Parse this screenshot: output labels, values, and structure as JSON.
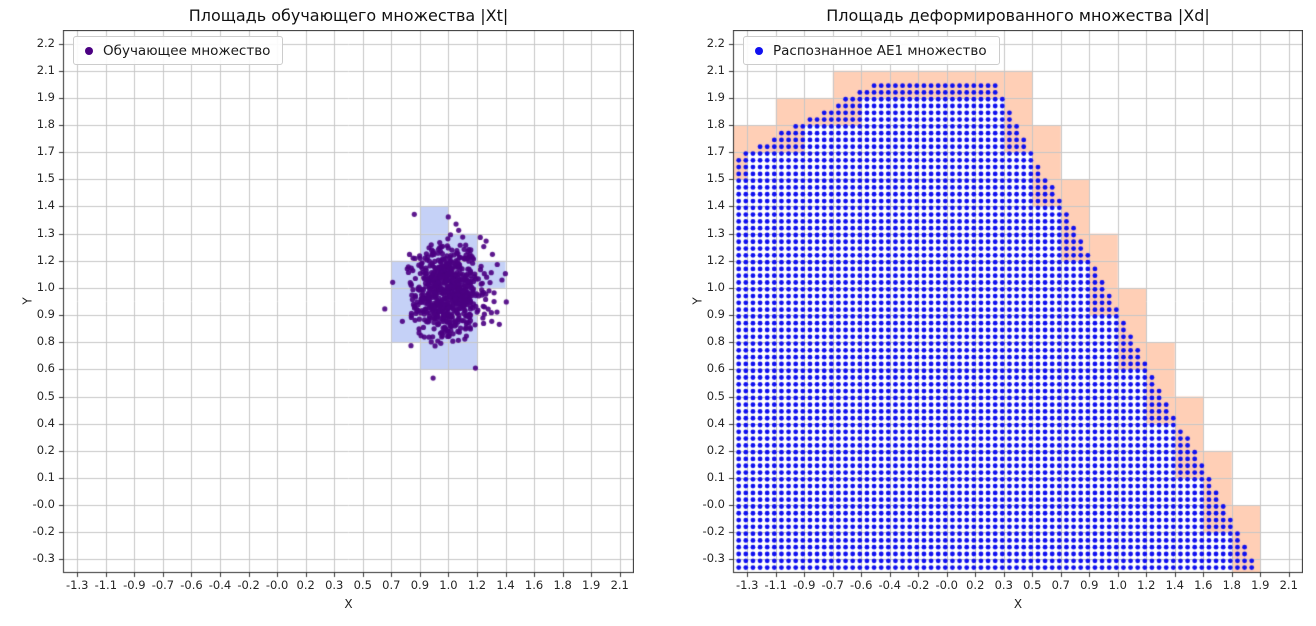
{
  "figure": {
    "background": "#ffffff"
  },
  "chart_data": [
    {
      "type": "scatter",
      "title": "Площадь обучающего множества |Xt|",
      "xlabel": "X",
      "ylabel": "Y",
      "grid": true,
      "x_tick_labels": [
        "-1.3",
        "-1.1",
        "-0.9",
        "-0.7",
        "-0.6",
        "-0.4",
        "-0.2",
        "-0.0",
        "0.2",
        "0.3",
        "0.5",
        "0.7",
        "0.9",
        "1.0",
        "1.2",
        "1.4",
        "1.6",
        "1.8",
        "1.9",
        "2.1"
      ],
      "y_tick_labels_bottom_to_top": [
        "-0.3",
        "-0.2",
        "-0.0",
        "0.1",
        "0.2",
        "0.4",
        "0.5",
        "0.6",
        "0.8",
        "0.9",
        "1.0",
        "1.2",
        "1.3",
        "1.4",
        "1.5",
        "1.7",
        "1.8",
        "1.9",
        "2.1",
        "2.2"
      ],
      "legend": {
        "label": "Обучающее множество",
        "marker_color": "#4B0082",
        "location": "upper left"
      },
      "cluster": {
        "center_data": [
          1.0,
          1.0
        ],
        "center_tick": [
          13.0,
          9.9
        ],
        "std_tick": [
          0.62,
          0.85
        ],
        "n": 750,
        "color": "#4B0082",
        "point_radius_px": 2.6
      },
      "highlight_cells": {
        "units": "tick-index-cells",
        "color": "rgba(110,140,235,0.40)",
        "cells_tick": [
          [
            11,
            8
          ],
          [
            11,
            9
          ],
          [
            11,
            10
          ],
          [
            12,
            7
          ],
          [
            12,
            8
          ],
          [
            12,
            9
          ],
          [
            12,
            10
          ],
          [
            12,
            11
          ],
          [
            12,
            12
          ],
          [
            13,
            7
          ],
          [
            13,
            8
          ],
          [
            13,
            9
          ],
          [
            13,
            10
          ],
          [
            13,
            11
          ],
          [
            14,
            10
          ]
        ]
      }
    },
    {
      "type": "scatter",
      "title": "Площадь деформированного множества |Xd|",
      "xlabel": "X",
      "ylabel": "Y",
      "grid": true,
      "x_tick_labels": [
        "-1.3",
        "-1.1",
        "-0.9",
        "-0.7",
        "-0.6",
        "-0.4",
        "-0.2",
        "-0.0",
        "0.2",
        "0.3",
        "0.5",
        "0.7",
        "0.9",
        "1.0",
        "1.2",
        "1.4",
        "1.6",
        "1.8",
        "1.9",
        "2.1"
      ],
      "y_tick_labels_bottom_to_top": [
        "-0.3",
        "-0.2",
        "-0.0",
        "0.1",
        "0.2",
        "0.4",
        "0.5",
        "0.6",
        "0.8",
        "0.9",
        "1.0",
        "1.2",
        "1.3",
        "1.4",
        "1.5",
        "1.7",
        "1.8",
        "1.9",
        "2.1",
        "2.2"
      ],
      "legend": {
        "label": "Распознанное АЕ1 множество",
        "marker_color": "#1010F0",
        "location": "upper left"
      },
      "dot_grid": {
        "units": "tick-index",
        "step_tick": 0.25,
        "start_tick": -0.3,
        "color": "#1010F0",
        "point_radius_px": 2.4,
        "region_polygon_tick": [
          [
            -0.6,
            -0.6
          ],
          [
            -0.6,
            14.7
          ],
          [
            4.6,
            17.6
          ],
          [
            8.7,
            17.6
          ],
          [
            18.05,
            -0.6
          ]
        ],
        "region_polygon_data_approx": [
          [
            -1.39,
            -0.38
          ],
          [
            -1.39,
            1.64
          ],
          [
            -0.48,
            2.02
          ],
          [
            0.26,
            2.02
          ],
          [
            1.93,
            -0.38
          ]
        ]
      },
      "partial_cells_color": "rgba(255,128,64,0.38)"
    }
  ]
}
